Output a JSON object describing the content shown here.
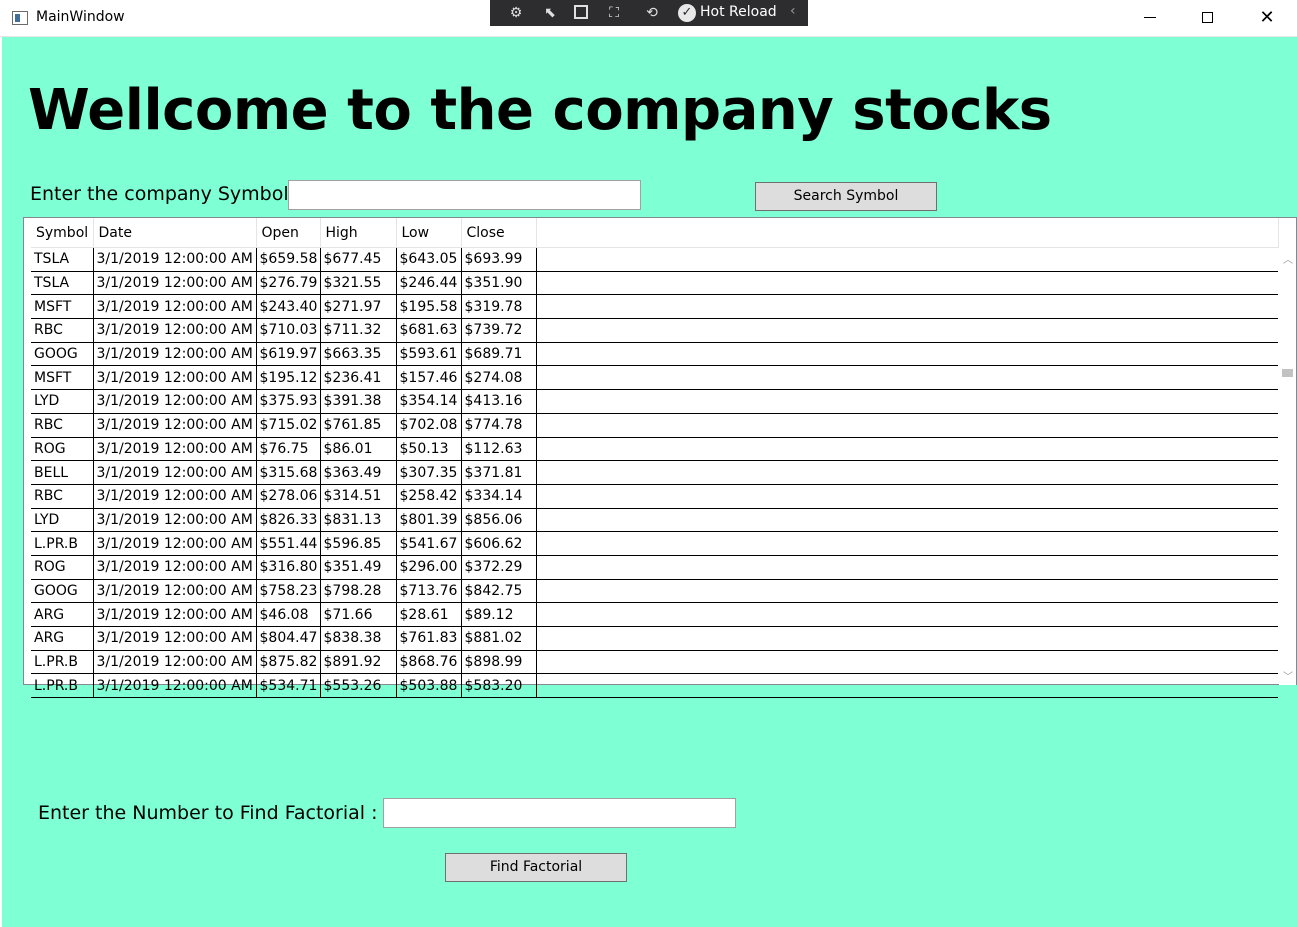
{
  "window": {
    "title": "MainWindow",
    "minimize_glyph": "—",
    "close_glyph": "✕"
  },
  "toolbar": {
    "hot_reload_label": "Hot Reload",
    "check_glyph": "✓",
    "chevron_glyph": "‹"
  },
  "main": {
    "heading": "Wellcome to the company stocks",
    "symbol_label": "Enter the company Symbol :",
    "symbol_value": "",
    "search_button": "Search Symbol",
    "factorial_label": "Enter the Number to Find Factorial :",
    "factorial_value": "",
    "factorial_button": "Find Factorial"
  },
  "grid": {
    "columns": [
      "Symbol",
      "Date",
      "Open",
      "High",
      "Low",
      "Close"
    ],
    "rows": [
      [
        "TSLA",
        "3/1/2019 12:00:00 AM",
        "$659.58",
        "$677.45",
        "$643.05",
        "$693.99"
      ],
      [
        "TSLA",
        "3/1/2019 12:00:00 AM",
        "$276.79",
        "$321.55",
        "$246.44",
        "$351.90"
      ],
      [
        "MSFT",
        "3/1/2019 12:00:00 AM",
        "$243.40",
        "$271.97",
        "$195.58",
        "$319.78"
      ],
      [
        "RBC",
        "3/1/2019 12:00:00 AM",
        "$710.03",
        "$711.32",
        "$681.63",
        "$739.72"
      ],
      [
        "GOOG",
        "3/1/2019 12:00:00 AM",
        "$619.97",
        "$663.35",
        "$593.61",
        "$689.71"
      ],
      [
        "MSFT",
        "3/1/2019 12:00:00 AM",
        "$195.12",
        "$236.41",
        "$157.46",
        "$274.08"
      ],
      [
        "LYD",
        "3/1/2019 12:00:00 AM",
        "$375.93",
        "$391.38",
        "$354.14",
        "$413.16"
      ],
      [
        "RBC",
        "3/1/2019 12:00:00 AM",
        "$715.02",
        "$761.85",
        "$702.08",
        "$774.78"
      ],
      [
        "ROG",
        "3/1/2019 12:00:00 AM",
        "$76.75",
        "$86.01",
        "$50.13",
        "$112.63"
      ],
      [
        "BELL",
        "3/1/2019 12:00:00 AM",
        "$315.68",
        "$363.49",
        "$307.35",
        "$371.81"
      ],
      [
        "RBC",
        "3/1/2019 12:00:00 AM",
        "$278.06",
        "$314.51",
        "$258.42",
        "$334.14"
      ],
      [
        "LYD",
        "3/1/2019 12:00:00 AM",
        "$826.33",
        "$831.13",
        "$801.39",
        "$856.06"
      ],
      [
        "L.PR.B",
        "3/1/2019 12:00:00 AM",
        "$551.44",
        "$596.85",
        "$541.67",
        "$606.62"
      ],
      [
        "ROG",
        "3/1/2019 12:00:00 AM",
        "$316.80",
        "$351.49",
        "$296.00",
        "$372.29"
      ],
      [
        "GOOG",
        "3/1/2019 12:00:00 AM",
        "$758.23",
        "$798.28",
        "$713.76",
        "$842.75"
      ],
      [
        "ARG",
        "3/1/2019 12:00:00 AM",
        "$46.08",
        "$71.66",
        "$28.61",
        "$89.12"
      ],
      [
        "ARG",
        "3/1/2019 12:00:00 AM",
        "$804.47",
        "$838.38",
        "$761.83",
        "$881.02"
      ],
      [
        "L.PR.B",
        "3/1/2019 12:00:00 AM",
        "$875.82",
        "$891.92",
        "$868.76",
        "$898.99"
      ],
      [
        "L.PR.B",
        "3/1/2019 12:00:00 AM",
        "$534.71",
        "$553.26",
        "$503.88",
        "$583.20"
      ]
    ],
    "scroll_up_glyph": "︿",
    "scroll_down_glyph": "﹀"
  }
}
